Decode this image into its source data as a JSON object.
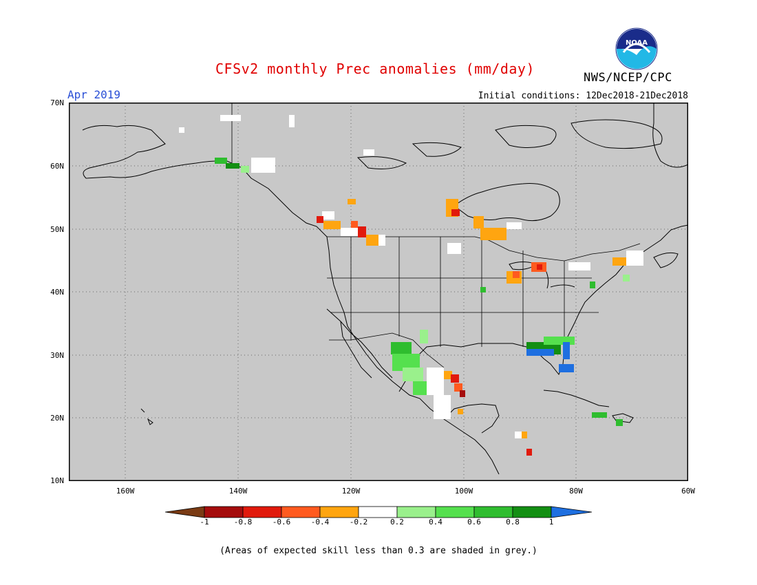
{
  "header": {
    "title": "CFSv2 monthly Prec anomalies (mm/day)",
    "month": "Apr 2019",
    "initial_conditions": "Initial conditions: 12Dec2018-21Dec2018",
    "agency": "NWS/NCEP/CPC",
    "logo_text": "NOAA"
  },
  "axes": {
    "lat_labels": [
      "70N",
      "60N",
      "50N",
      "40N",
      "30N",
      "20N",
      "10N"
    ],
    "lon_labels": [
      "160W",
      "140W",
      "120W",
      "100W",
      "80W",
      "60W"
    ]
  },
  "colorbar": {
    "labels": [
      "-1",
      "-0.8",
      "-0.6",
      "-0.4",
      "-0.2",
      "0.2",
      "0.4",
      "0.6",
      "0.8",
      "1"
    ],
    "colors": [
      "#7a3b14",
      "#a50d0d",
      "#e11a0c",
      "#ff5a1f",
      "#ffa510",
      "#ffffff",
      "#9af08c",
      "#55e04e",
      "#2fbd2f",
      "#138f13",
      "#1e6fe0"
    ]
  },
  "map_colors": {
    "land_grey": "#c8c8c8",
    "outline": "#000000"
  },
  "footnote": "(Areas of expected skill less than 0.3 are shaded in grey.)"
}
